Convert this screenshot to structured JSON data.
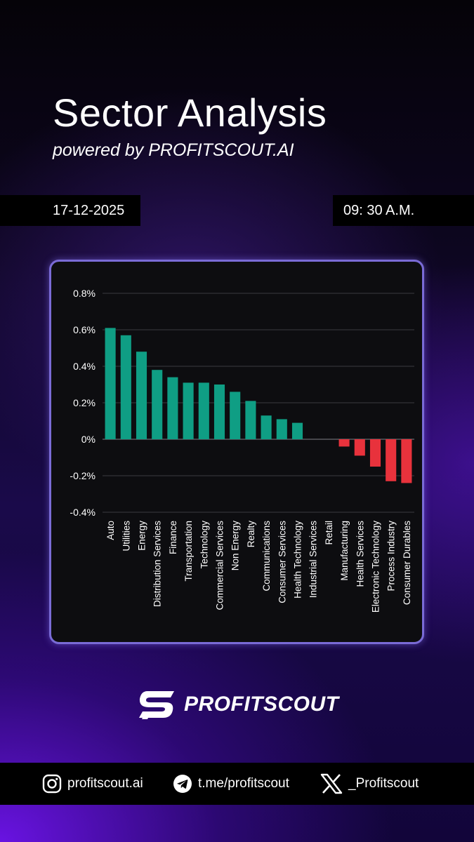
{
  "header": {
    "title": "Sector Analysis",
    "subtitle": "powered by PROFITSCOUT.AI",
    "date": "17-12-2025",
    "time": "09: 30 A.M."
  },
  "brand": {
    "name": "PROFITSCOUT",
    "logo_icon": "profitscout-s-logo"
  },
  "footer": {
    "instagram_icon": "instagram-icon",
    "instagram": "profitscout.ai",
    "telegram_icon": "telegram-icon",
    "telegram": "t.me/profitscout",
    "x_icon": "x-icon",
    "x_handle": "_Profitscout"
  },
  "colors": {
    "positive": "#0f9e84",
    "negative": "#e8323c",
    "card_border": "#7a6bd6"
  },
  "chart_data": {
    "type": "bar",
    "categories": [
      "Auto",
      "Utilities",
      "Energy",
      "Distribution Services",
      "Finance",
      "Transportation",
      "Technology",
      "Commercial Services",
      "Non Energy",
      "Realty",
      "Communications",
      "Consumer Services",
      "Health Technology",
      "Industrial Services",
      "Retail",
      "Manufacturing",
      "Health Services",
      "Electronic Technology",
      "Process Industry",
      "Consumer Durables"
    ],
    "values": [
      0.61,
      0.57,
      0.48,
      0.38,
      0.34,
      0.31,
      0.31,
      0.3,
      0.26,
      0.21,
      0.13,
      0.11,
      0.09,
      0.0,
      0.0,
      -0.04,
      -0.09,
      -0.15,
      -0.23,
      -0.24
    ],
    "ylim": [
      -0.4,
      0.8
    ],
    "yticks": [
      0.8,
      0.6,
      0.4,
      0.2,
      0,
      -0.2,
      -0.4
    ],
    "ytick_labels": [
      "0.8%",
      "0.6%",
      "0.4%",
      "0.2%",
      "0%",
      "-0.2%",
      "-0.4%"
    ],
    "grid": true
  }
}
